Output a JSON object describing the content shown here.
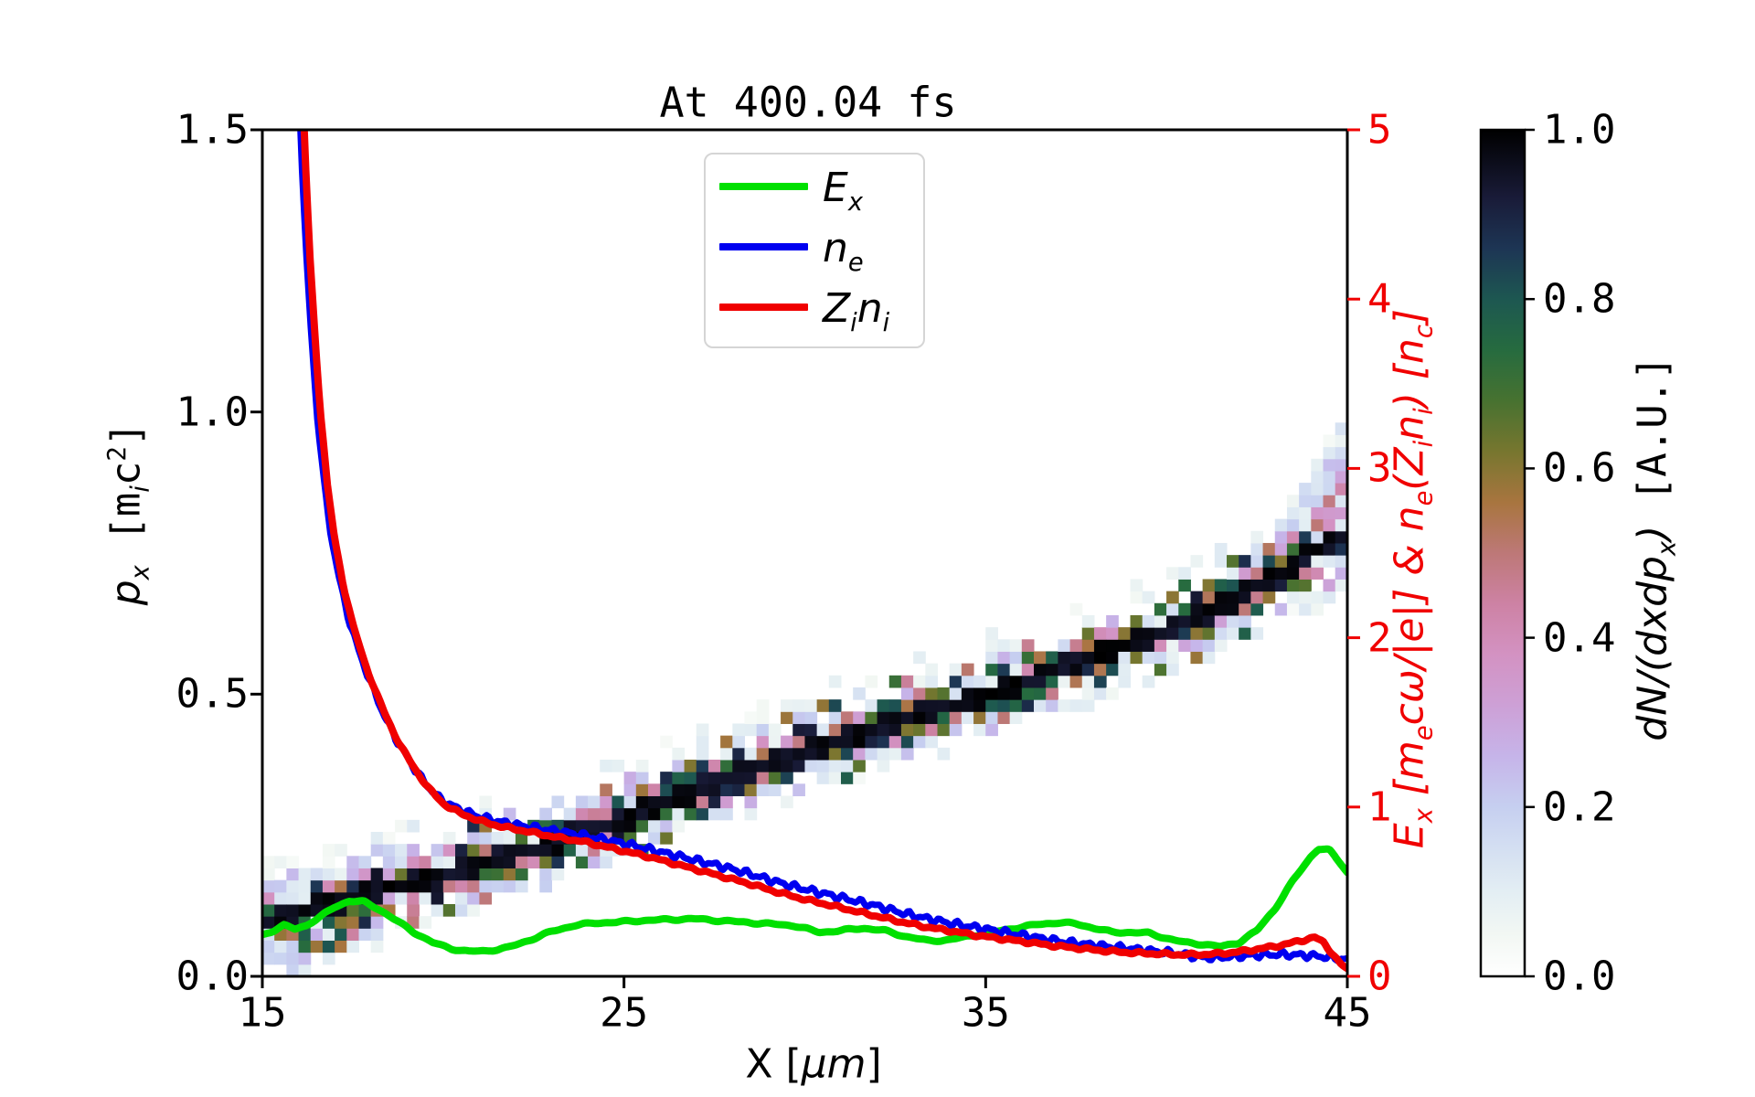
{
  "figure": {
    "background": "#ffffff"
  },
  "chart_data": {
    "type": "composite",
    "subtypes": [
      "heatmap",
      "line"
    ],
    "title": "At 400.04 fs",
    "grid": false,
    "axes": {
      "x": {
        "label_parts": {
          "pre": "X [",
          "mu": "μm",
          "post": "]"
        },
        "range": [
          15,
          45
        ],
        "ticks": [
          15,
          25,
          35,
          45
        ],
        "tick_labels": [
          "15",
          "25",
          "35",
          "45"
        ]
      },
      "y_left": {
        "label_parts": {
          "p": "p",
          "psub": "x",
          "b1": " [m",
          "msub": "i",
          "c": "c",
          "sup": "2",
          "b2": "]"
        },
        "range": [
          0.0,
          1.5
        ],
        "ticks": [
          0.0,
          0.5,
          1.0,
          1.5
        ],
        "tick_labels": [
          "0.0",
          "0.5",
          "1.0",
          "1.5"
        ]
      },
      "y_right": {
        "label_parts": {
          "s0": "E",
          "s0sub": "x",
          "s1": " [m",
          "s1sub": "e",
          "s2": "cω/|e|] & n",
          "s2sub": "e",
          "s3": "(Z",
          "s3sub": "i",
          "s4": "n",
          "s4sub": "i",
          "s5": ") [n",
          "s5sub": "c",
          "s6": "]"
        },
        "color": "#f00000",
        "range": [
          0,
          5
        ],
        "ticks": [
          0,
          1,
          2,
          3,
          4,
          5
        ],
        "tick_labels": [
          "0",
          "1",
          "2",
          "3",
          "4",
          "5"
        ]
      }
    },
    "colorbar": {
      "label_parts": {
        "main": "dN/(dxdp",
        "sub": "x",
        "close": ")",
        "unit": " [A.U.]"
      },
      "range": [
        0.0,
        1.0
      ],
      "ticks": [
        0.0,
        0.2,
        0.4,
        0.6,
        0.8,
        1.0
      ],
      "tick_labels": [
        "0.0",
        "0.2",
        "0.4",
        "0.6",
        "0.8",
        "1.0"
      ],
      "colormap_stops": [
        [
          0.0,
          "#ffffff"
        ],
        [
          0.05,
          "#f2f7f3"
        ],
        [
          0.1,
          "#e3eef3"
        ],
        [
          0.15,
          "#d4dff2"
        ],
        [
          0.2,
          "#c6cff0"
        ],
        [
          0.26,
          "#c6b4e9"
        ],
        [
          0.32,
          "#cda0d6"
        ],
        [
          0.38,
          "#d392c2"
        ],
        [
          0.44,
          "#cd82a4"
        ],
        [
          0.5,
          "#bd7877"
        ],
        [
          0.56,
          "#a8753f"
        ],
        [
          0.62,
          "#77762f"
        ],
        [
          0.68,
          "#477230"
        ],
        [
          0.74,
          "#266b3f"
        ],
        [
          0.8,
          "#1d5751"
        ],
        [
          0.86,
          "#1d3554"
        ],
        [
          0.92,
          "#191b38"
        ],
        [
          1.0,
          "#000000"
        ]
      ]
    },
    "legend": {
      "position": "upper center",
      "items": [
        {
          "parts": [
            {
              "t": "E",
              "sub": false
            },
            {
              "t": "x",
              "sub": true
            }
          ],
          "color": "#00e000"
        },
        {
          "parts": [
            {
              "t": "n",
              "sub": false
            },
            {
              "t": "e",
              "sub": true
            }
          ],
          "color": "#0000f0"
        },
        {
          "parts": [
            {
              "t": "Z",
              "sub": false
            },
            {
              "t": "i",
              "sub": true
            },
            {
              "t": "n",
              "sub": false
            },
            {
              "t": "i",
              "sub": true
            }
          ],
          "color": "#f00000"
        }
      ]
    },
    "series": [
      {
        "name": "E_x",
        "axis": "right",
        "color": "#00e000",
        "width": 8,
        "noise": {
          "amp1": 0.004,
          "f1": 6.1,
          "amp2": 0.003,
          "f2": 11.3
        },
        "points": [
          [
            15,
            0.245
          ],
          [
            15.3,
            0.27
          ],
          [
            15.6,
            0.3
          ],
          [
            15.9,
            0.28
          ],
          [
            16.2,
            0.3
          ],
          [
            16.6,
            0.35
          ],
          [
            17.0,
            0.41
          ],
          [
            17.4,
            0.445
          ],
          [
            17.8,
            0.44
          ],
          [
            18.2,
            0.4
          ],
          [
            18.7,
            0.33
          ],
          [
            19.2,
            0.26
          ],
          [
            19.7,
            0.2
          ],
          [
            20.2,
            0.165
          ],
          [
            20.7,
            0.147
          ],
          [
            21.2,
            0.15
          ],
          [
            21.8,
            0.17
          ],
          [
            22.4,
            0.215
          ],
          [
            23.0,
            0.265
          ],
          [
            23.6,
            0.3
          ],
          [
            24.2,
            0.315
          ],
          [
            24.8,
            0.32
          ],
          [
            25.5,
            0.33
          ],
          [
            26.2,
            0.335
          ],
          [
            26.9,
            0.34
          ],
          [
            27.6,
            0.33
          ],
          [
            28.3,
            0.32
          ],
          [
            29.0,
            0.31
          ],
          [
            29.7,
            0.3
          ],
          [
            30.4,
            0.26
          ],
          [
            31.0,
            0.27
          ],
          [
            31.6,
            0.285
          ],
          [
            32.2,
            0.27
          ],
          [
            32.8,
            0.235
          ],
          [
            33.4,
            0.21
          ],
          [
            34.0,
            0.215
          ],
          [
            34.6,
            0.24
          ],
          [
            35.2,
            0.26
          ],
          [
            35.8,
            0.285
          ],
          [
            36.4,
            0.305
          ],
          [
            37.0,
            0.318
          ],
          [
            37.5,
            0.31
          ],
          [
            38.0,
            0.285
          ],
          [
            38.5,
            0.26
          ],
          [
            39.0,
            0.26
          ],
          [
            39.5,
            0.255
          ],
          [
            40.0,
            0.225
          ],
          [
            40.5,
            0.2
          ],
          [
            41.0,
            0.19
          ],
          [
            41.5,
            0.175
          ],
          [
            42.0,
            0.2
          ],
          [
            42.5,
            0.27
          ],
          [
            43.0,
            0.4
          ],
          [
            43.5,
            0.565
          ],
          [
            44.0,
            0.71
          ],
          [
            44.2,
            0.755
          ],
          [
            44.5,
            0.745
          ],
          [
            44.8,
            0.67
          ],
          [
            45,
            0.615
          ]
        ]
      },
      {
        "name": "n_e",
        "axis": "right",
        "color": "#0000f0",
        "width": 7,
        "noise": {
          "amp1": 0.013,
          "f1": 14.0,
          "amp2": 0.008,
          "f2": 23.7
        },
        "points": [
          [
            15.98,
            5.7
          ],
          [
            16.05,
            5.0
          ],
          [
            16.2,
            4.3
          ],
          [
            16.35,
            3.8
          ],
          [
            16.5,
            3.35
          ],
          [
            16.7,
            2.92
          ],
          [
            16.9,
            2.6
          ],
          [
            17.15,
            2.32
          ],
          [
            17.4,
            2.1
          ],
          [
            17.7,
            1.9
          ],
          [
            18.0,
            1.73
          ],
          [
            18.35,
            1.55
          ],
          [
            18.7,
            1.4
          ],
          [
            19.1,
            1.26
          ],
          [
            19.5,
            1.14
          ],
          [
            19.9,
            1.05
          ],
          [
            20.4,
            0.99
          ],
          [
            20.9,
            0.95
          ],
          [
            21.4,
            0.92
          ],
          [
            22.0,
            0.895
          ],
          [
            22.6,
            0.875
          ],
          [
            23.2,
            0.855
          ],
          [
            23.8,
            0.835
          ],
          [
            24.4,
            0.81
          ],
          [
            25.0,
            0.785
          ],
          [
            25.6,
            0.755
          ],
          [
            26.3,
            0.72
          ],
          [
            27.0,
            0.685
          ],
          [
            27.7,
            0.65
          ],
          [
            28.4,
            0.61
          ],
          [
            29.1,
            0.565
          ],
          [
            29.8,
            0.525
          ],
          [
            30.5,
            0.49
          ],
          [
            31.2,
            0.455
          ],
          [
            31.9,
            0.42
          ],
          [
            32.6,
            0.38
          ],
          [
            33.3,
            0.345
          ],
          [
            34.0,
            0.315
          ],
          [
            34.7,
            0.29
          ],
          [
            35.4,
            0.265
          ],
          [
            36.1,
            0.24
          ],
          [
            36.8,
            0.215
          ],
          [
            37.5,
            0.195
          ],
          [
            38.2,
            0.18
          ],
          [
            38.9,
            0.165
          ],
          [
            39.6,
            0.15
          ],
          [
            40.3,
            0.135
          ],
          [
            41.0,
            0.11
          ],
          [
            41.7,
            0.115
          ],
          [
            42.4,
            0.125
          ],
          [
            43.1,
            0.13
          ],
          [
            43.8,
            0.125
          ],
          [
            44.4,
            0.115
          ],
          [
            45,
            0.1
          ]
        ]
      },
      {
        "name": "Z_i n_i",
        "axis": "right",
        "color": "#f00000",
        "width": 8,
        "noise": {
          "amp1": 0.005,
          "f1": 9.0,
          "amp2": 0.004,
          "f2": 17.3
        },
        "points": [
          [
            16.08,
            5.7
          ],
          [
            16.15,
            5.0
          ],
          [
            16.3,
            4.3
          ],
          [
            16.45,
            3.8
          ],
          [
            16.6,
            3.35
          ],
          [
            16.8,
            2.9
          ],
          [
            17.0,
            2.58
          ],
          [
            17.25,
            2.3
          ],
          [
            17.5,
            2.08
          ],
          [
            17.8,
            1.87
          ],
          [
            18.1,
            1.7
          ],
          [
            18.45,
            1.52
          ],
          [
            18.8,
            1.37
          ],
          [
            19.2,
            1.23
          ],
          [
            19.6,
            1.11
          ],
          [
            20.0,
            1.02
          ],
          [
            20.5,
            0.96
          ],
          [
            21.0,
            0.92
          ],
          [
            21.5,
            0.89
          ],
          [
            22.1,
            0.865
          ],
          [
            22.7,
            0.84
          ],
          [
            23.3,
            0.815
          ],
          [
            23.9,
            0.795
          ],
          [
            24.5,
            0.765
          ],
          [
            25.1,
            0.735
          ],
          [
            25.7,
            0.705
          ],
          [
            26.4,
            0.665
          ],
          [
            27.1,
            0.625
          ],
          [
            27.8,
            0.585
          ],
          [
            28.5,
            0.545
          ],
          [
            29.2,
            0.5
          ],
          [
            29.9,
            0.46
          ],
          [
            30.6,
            0.425
          ],
          [
            31.3,
            0.39
          ],
          [
            32.0,
            0.355
          ],
          [
            32.7,
            0.32
          ],
          [
            33.4,
            0.29
          ],
          [
            34.1,
            0.265
          ],
          [
            34.8,
            0.24
          ],
          [
            35.5,
            0.22
          ],
          [
            36.2,
            0.2
          ],
          [
            36.9,
            0.18
          ],
          [
            37.6,
            0.165
          ],
          [
            38.3,
            0.15
          ],
          [
            39.0,
            0.14
          ],
          [
            39.7,
            0.133
          ],
          [
            40.4,
            0.128
          ],
          [
            41.1,
            0.13
          ],
          [
            41.8,
            0.14
          ],
          [
            42.5,
            0.16
          ],
          [
            43.2,
            0.185
          ],
          [
            43.8,
            0.215
          ],
          [
            44.1,
            0.23
          ],
          [
            44.35,
            0.2
          ],
          [
            44.6,
            0.13
          ],
          [
            44.8,
            0.075
          ],
          [
            45,
            0.042
          ]
        ]
      }
    ],
    "heatmap": {
      "description": "phase-space band dN/(dx dpx): dense black diagonal band with colored speckles",
      "x_units": "um",
      "p_units": "m_i c^2",
      "band_center": [
        [
          15,
          0.095
        ],
        [
          16,
          0.113
        ],
        [
          17,
          0.13
        ],
        [
          18,
          0.148
        ],
        [
          19,
          0.165
        ],
        [
          20,
          0.18
        ],
        [
          21,
          0.2
        ],
        [
          22,
          0.218
        ],
        [
          23,
          0.235
        ],
        [
          24,
          0.258
        ],
        [
          25,
          0.28
        ],
        [
          26,
          0.305
        ],
        [
          27,
          0.33
        ],
        [
          28,
          0.355
        ],
        [
          29,
          0.38
        ],
        [
          30,
          0.4
        ],
        [
          31,
          0.42
        ],
        [
          32,
          0.44
        ],
        [
          33,
          0.46
        ],
        [
          34,
          0.48
        ],
        [
          35,
          0.5
        ],
        [
          36,
          0.522
        ],
        [
          37,
          0.545
        ],
        [
          38,
          0.567
        ],
        [
          39,
          0.59
        ],
        [
          40,
          0.615
        ],
        [
          41,
          0.64
        ],
        [
          42,
          0.67
        ],
        [
          43,
          0.71
        ],
        [
          44,
          0.75
        ],
        [
          45,
          0.785
        ]
      ],
      "cell_dx": 0.3333,
      "cell_dp": 0.02133,
      "sigma_p": 0.032,
      "fan": {
        "x_start": 42.3,
        "top_slope": 0.082,
        "top_cap": 0.18,
        "bottom_extent": 0.075
      },
      "blob": {
        "x0": 15.6,
        "x1": 18.4,
        "depth": 0.085
      },
      "haze": {
        "x_max": 16.4,
        "p0": 0.01,
        "p1": 0.175
      }
    }
  }
}
